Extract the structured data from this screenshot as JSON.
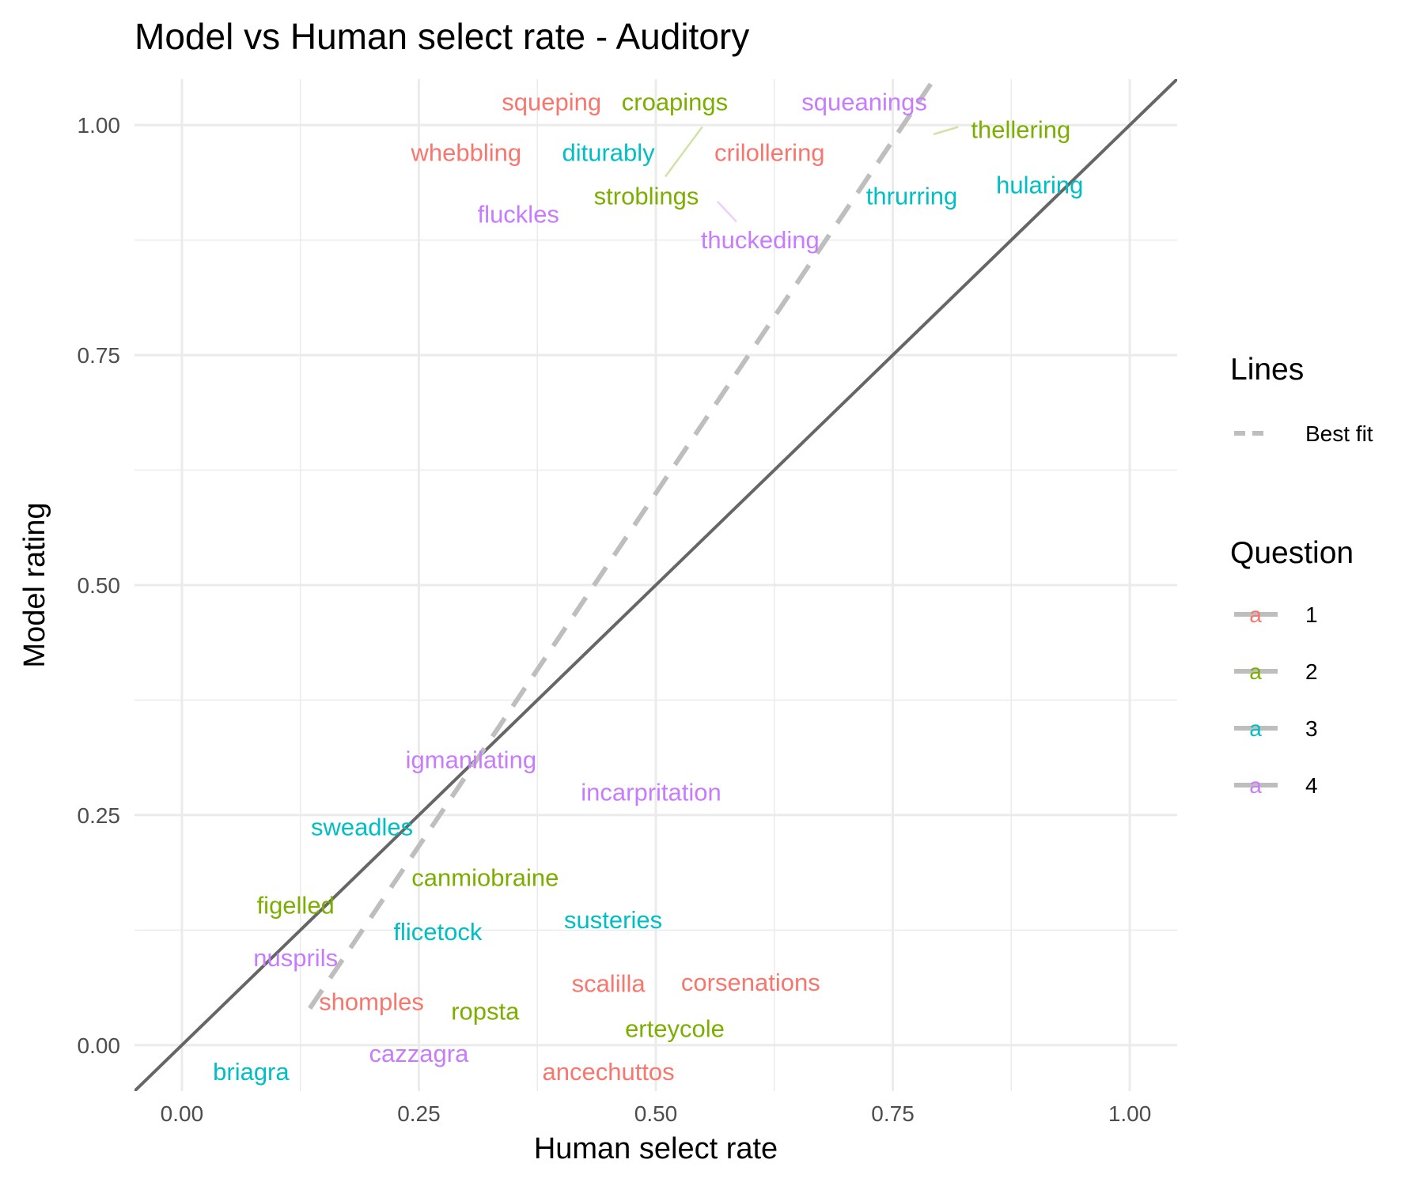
{
  "chart_data": {
    "type": "scatter",
    "title": "Model vs Human select rate - Auditory",
    "xlabel": "Human select rate",
    "ylabel": "Model rating",
    "xlim": [
      -0.05,
      1.05
    ],
    "ylim": [
      -0.05,
      1.05
    ],
    "x_ticks": [
      "0.00",
      "0.25",
      "0.50",
      "0.75",
      "1.00"
    ],
    "y_ticks": [
      "0.00",
      "0.25",
      "0.50",
      "0.75",
      "1.00"
    ],
    "x_tick_values": [
      0,
      0.25,
      0.5,
      0.75,
      1.0
    ],
    "y_tick_values": [
      0,
      0.25,
      0.5,
      0.75,
      1.0
    ],
    "grid": true,
    "reference_line": {
      "name": "y = x",
      "slope": 1,
      "intercept": 0,
      "color": "#666666"
    },
    "best_fit": {
      "name": "Best fit",
      "x_start": 0.135,
      "x_end": 0.8,
      "y_start": 0.04,
      "y_end": 1.06,
      "color": "#bebebe"
    },
    "question_colors": {
      "1": "#F8766D",
      "2": "#7CAE00",
      "3": "#00BFC4",
      "4": "#C77CFF"
    },
    "points": [
      {
        "label": "squeping",
        "question": "1",
        "x": 0.39,
        "y": 1.025
      },
      {
        "label": "croapings",
        "question": "2",
        "x": 0.52,
        "y": 1.025
      },
      {
        "label": "squeanings",
        "question": "4",
        "x": 0.72,
        "y": 1.025
      },
      {
        "label": "thellering",
        "question": "2",
        "x": 0.885,
        "y": 0.995
      },
      {
        "label": "whebbling",
        "question": "1",
        "x": 0.3,
        "y": 0.97
      },
      {
        "label": "diturably",
        "question": "3",
        "x": 0.45,
        "y": 0.97
      },
      {
        "label": "crilollering",
        "question": "1",
        "x": 0.62,
        "y": 0.97
      },
      {
        "label": "hularing",
        "question": "3",
        "x": 0.905,
        "y": 0.935
      },
      {
        "label": "stroblings",
        "question": "2",
        "x": 0.49,
        "y": 0.923
      },
      {
        "label": "thrurring",
        "question": "3",
        "x": 0.77,
        "y": 0.923
      },
      {
        "label": "fluckles",
        "question": "4",
        "x": 0.355,
        "y": 0.903
      },
      {
        "label": "thuckeding",
        "question": "4",
        "x": 0.61,
        "y": 0.875
      },
      {
        "label": "igmanilating",
        "question": "4",
        "x": 0.305,
        "y": 0.31
      },
      {
        "label": "incarpritation",
        "question": "4",
        "x": 0.495,
        "y": 0.275
      },
      {
        "label": "sweadles",
        "question": "3",
        "x": 0.19,
        "y": 0.237
      },
      {
        "label": "canmiobraine",
        "question": "2",
        "x": 0.32,
        "y": 0.182
      },
      {
        "label": "figelled",
        "question": "2",
        "x": 0.12,
        "y": 0.152
      },
      {
        "label": "susteries",
        "question": "3",
        "x": 0.455,
        "y": 0.136
      },
      {
        "label": "flicetock",
        "question": "3",
        "x": 0.27,
        "y": 0.123
      },
      {
        "label": "nusprils",
        "question": "4",
        "x": 0.12,
        "y": 0.095
      },
      {
        "label": "scalilla",
        "question": "1",
        "x": 0.45,
        "y": 0.067
      },
      {
        "label": "corsenations",
        "question": "1",
        "x": 0.6,
        "y": 0.068
      },
      {
        "label": "shomples",
        "question": "1",
        "x": 0.2,
        "y": 0.047
      },
      {
        "label": "ropsta",
        "question": "2",
        "x": 0.32,
        "y": 0.037
      },
      {
        "label": "erteycole",
        "question": "2",
        "x": 0.52,
        "y": 0.018
      },
      {
        "label": "cazzagra",
        "question": "4",
        "x": 0.25,
        "y": -0.009
      },
      {
        "label": "briagra",
        "question": "3",
        "x": 0.073,
        "y": -0.029
      },
      {
        "label": "ancechuttos",
        "question": "1",
        "x": 0.45,
        "y": -0.029
      }
    ],
    "leader_lines": [
      {
        "question": "2",
        "from": [
          0.549,
          0.998
        ],
        "to": [
          0.51,
          0.944
        ]
      },
      {
        "question": "4",
        "from": [
          0.565,
          0.917
        ],
        "to": [
          0.585,
          0.895
        ]
      },
      {
        "question": "2",
        "from": [
          0.819,
          0.998
        ],
        "to": [
          0.793,
          0.99
        ]
      }
    ],
    "legend": {
      "lines_title": "Lines",
      "lines_items": [
        {
          "label": "Best fit"
        }
      ],
      "question_title": "Question",
      "question_items": [
        {
          "label": "1",
          "key_text": "a"
        },
        {
          "label": "2",
          "key_text": "a"
        },
        {
          "label": "3",
          "key_text": "a"
        },
        {
          "label": "4",
          "key_text": "a"
        }
      ]
    }
  }
}
